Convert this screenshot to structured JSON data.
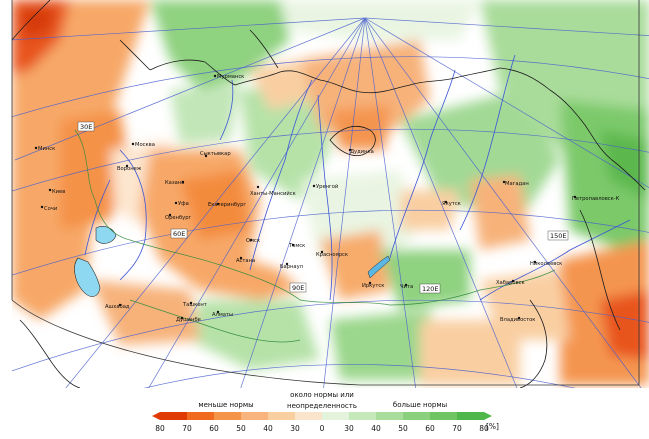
{
  "map": {
    "meridian_labels": [
      "30E",
      "60E",
      "90E",
      "120E",
      "150E"
    ],
    "cities": [
      "Мурманск",
      "Москва",
      "Воронеж",
      "Казань",
      "Уфа",
      "Оренбург",
      "Сыктывкар",
      "Ханты-Мансийск",
      "Екатеринбург",
      "Омск",
      "Астана",
      "Томск",
      "Барнаул",
      "Красноярск",
      "Иркутск",
      "Чита",
      "Уренгой",
      "Дудинка",
      "Якутск",
      "Магадан",
      "Петропавловск-К",
      "Хабаровск",
      "Владивосток",
      "Николаевск",
      "Киев",
      "Минск",
      "Сочи",
      "Ашхабад",
      "Алматы",
      "Ташкент",
      "Душанбе"
    ]
  },
  "legend": {
    "caption_left": "меньше нормы",
    "caption_mid_line1": "около нормы или",
    "caption_mid_line2": "неопределенность",
    "caption_right": "больше нормы",
    "ticks": [
      "80",
      "70",
      "60",
      "50",
      "40",
      "30",
      "0",
      "30",
      "40",
      "50",
      "60",
      "70",
      "80"
    ],
    "unit": "[%]",
    "colors": [
      "#e03a05",
      "#f06a20",
      "#f59347",
      "#f8b47c",
      "#f9cfa2",
      "#fbe4cc",
      "#ffffff",
      "#e4f4dc",
      "#c6e9bc",
      "#a7dc9b",
      "#8bd07c",
      "#70c563",
      "#4fb64a"
    ]
  }
}
